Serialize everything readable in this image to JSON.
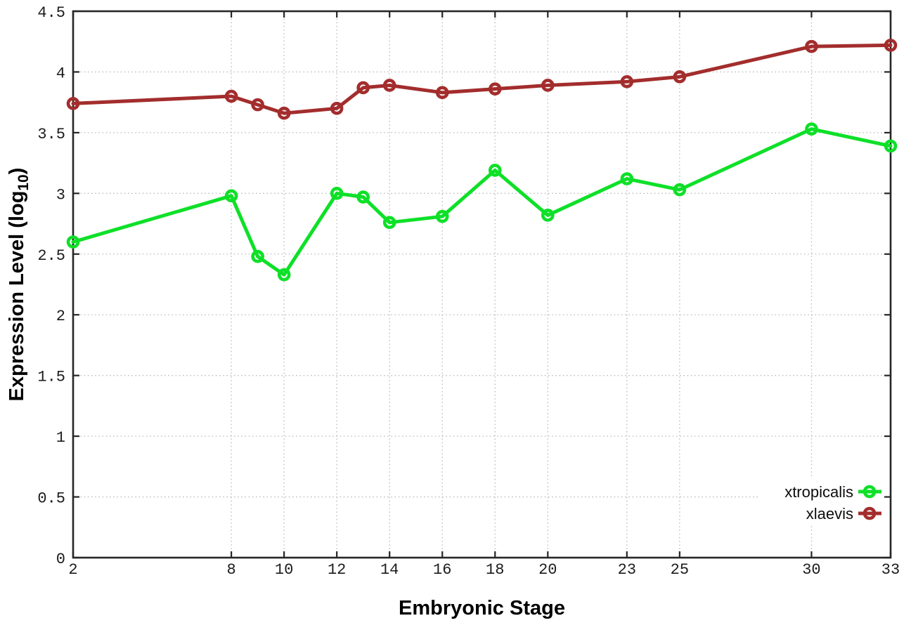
{
  "chart_data": {
    "type": "line",
    "x": [
      2,
      8,
      9,
      10,
      12,
      13,
      14,
      16,
      18,
      20,
      23,
      25,
      30,
      33
    ],
    "series": [
      {
        "name": "xtropicalis",
        "color": "#0ee028",
        "values": [
          2.6,
          2.98,
          2.48,
          2.33,
          3.0,
          2.97,
          2.76,
          2.81,
          3.19,
          2.82,
          3.12,
          3.03,
          3.53,
          3.39
        ]
      },
      {
        "name": "xlaevis",
        "color": "#a32d2d",
        "values": [
          3.74,
          3.8,
          3.73,
          3.66,
          3.7,
          3.87,
          3.89,
          3.83,
          3.86,
          3.89,
          3.92,
          3.96,
          4.21,
          4.22
        ]
      }
    ],
    "xlabel": "Embryonic Stage",
    "ylabel": "Expression Level (log10)",
    "ylabel_parts": {
      "pre": "Expression Level (log",
      "sub": "10",
      "post": ")"
    },
    "xlim": [
      2,
      33
    ],
    "ylim": [
      0,
      4.5
    ],
    "x_ticks": {
      "values": [
        2,
        8,
        10,
        12,
        14,
        16,
        18,
        20,
        23,
        25,
        30,
        33
      ],
      "labels": [
        "2",
        "8",
        "10",
        "12",
        "14",
        "16",
        "18",
        "20",
        "23",
        "25",
        "30",
        "33"
      ]
    },
    "y_ticks": {
      "values": [
        0,
        0.5,
        1,
        1.5,
        2,
        2.5,
        3,
        3.5,
        4,
        4.5
      ],
      "labels": [
        "0",
        "0.5",
        "1",
        "1.5",
        "2",
        "2.5",
        "3",
        "3.5",
        "4",
        "4.5"
      ]
    },
    "grid": true,
    "marker": "open-circle",
    "legend": {
      "position": "bottom-right-inside",
      "entries": [
        "xtropicalis",
        "xlaevis"
      ]
    },
    "colors": {
      "grid": "#bcbcbc",
      "border": "#262626",
      "tick_text": "#1c1c1c"
    }
  }
}
